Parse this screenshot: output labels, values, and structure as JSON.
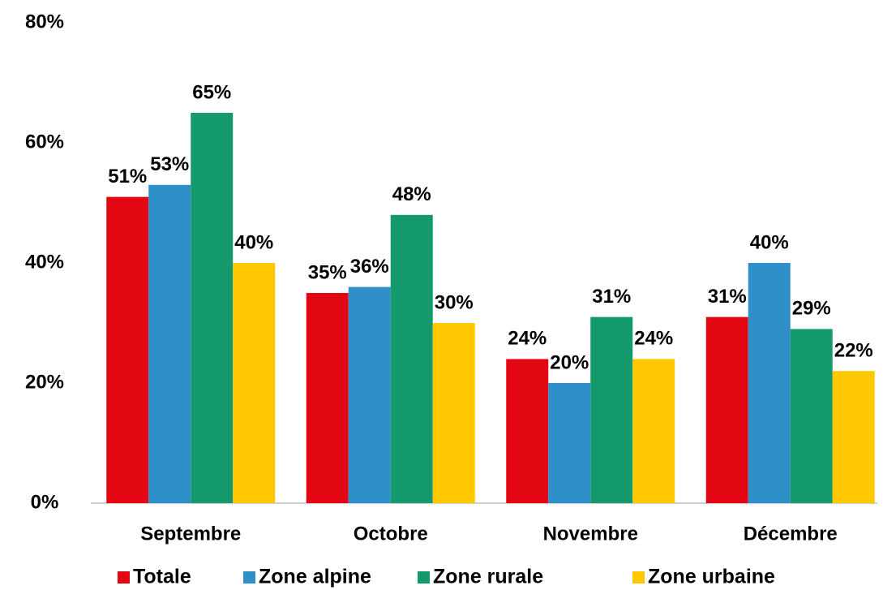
{
  "chart_data": {
    "type": "bar",
    "categories": [
      "Septembre",
      "Octobre",
      "Novembre",
      "Décembre"
    ],
    "series": [
      {
        "name": "Totale",
        "color": "#e30613",
        "values": [
          51,
          35,
          24,
          31
        ],
        "value_labels": [
          "51%",
          "35%",
          "24%",
          "31%"
        ]
      },
      {
        "name": "Zone alpine",
        "color": "#2e8fc9",
        "values": [
          53,
          36,
          20,
          40
        ],
        "value_labels": [
          "53%",
          "36%",
          "20%",
          "40%"
        ]
      },
      {
        "name": "Zone rurale",
        "color": "#159a6e",
        "values": [
          65,
          48,
          31,
          29
        ],
        "value_labels": [
          "65%",
          "48%",
          "31%",
          "29%"
        ]
      },
      {
        "name": "Zone urbaine",
        "color": "#ffc800",
        "values": [
          40,
          30,
          24,
          22
        ],
        "value_labels": [
          "40%",
          "30%",
          "24%",
          "22%"
        ]
      }
    ],
    "ylim": [
      0,
      80
    ],
    "yticks": [
      {
        "value": 0,
        "label": "0%"
      },
      {
        "value": 20,
        "label": "20%"
      },
      {
        "value": 40,
        "label": "40%"
      },
      {
        "value": 60,
        "label": "60%"
      },
      {
        "value": 80,
        "label": "80%"
      }
    ],
    "grid": false,
    "legend": "bottom"
  }
}
